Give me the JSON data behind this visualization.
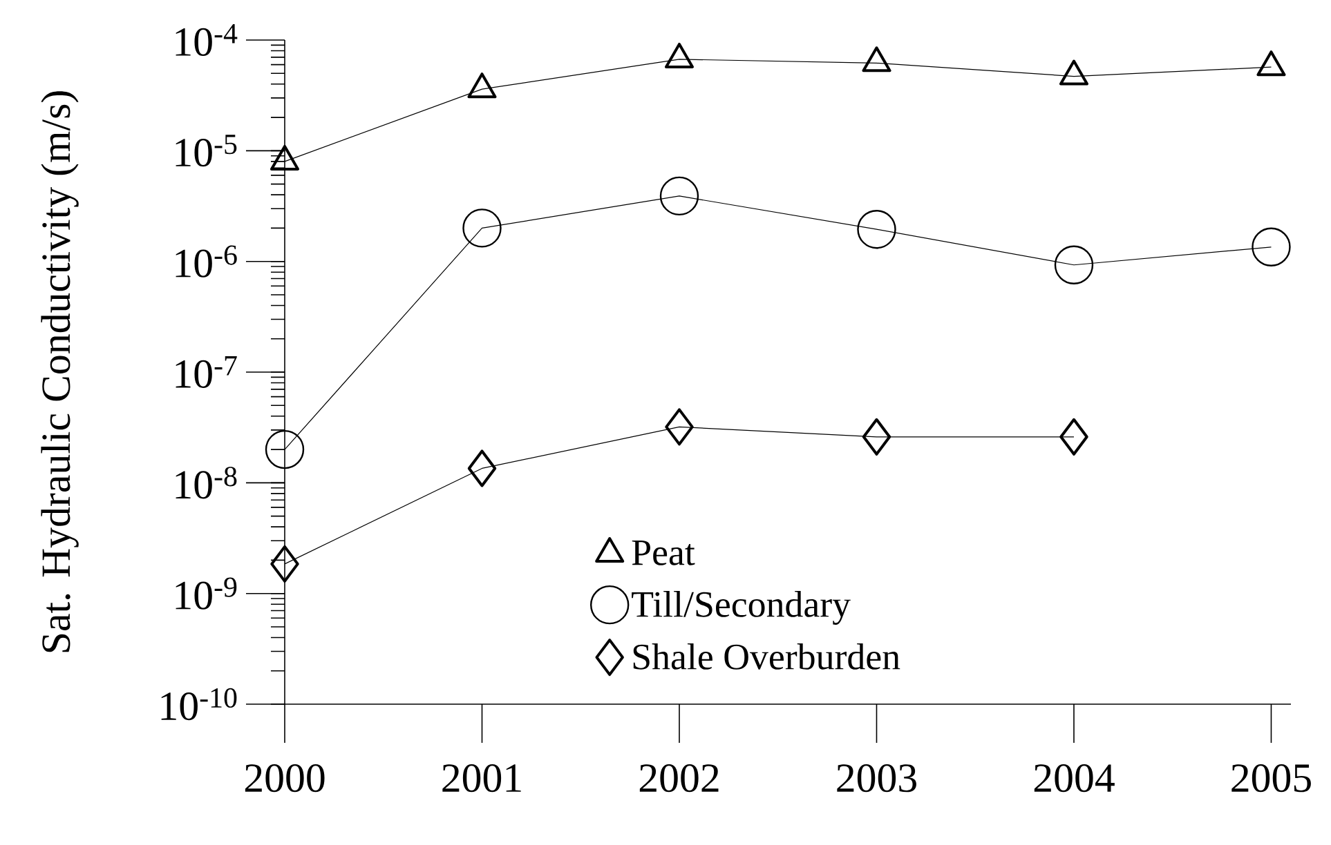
{
  "chart_data": {
    "type": "line",
    "ylabel": "Sat. Hydraulic Conductivity (m/s)",
    "categories": [
      "2000",
      "2001",
      "2002",
      "2003",
      "2004",
      "2005"
    ],
    "series": [
      {
        "name": "Peat",
        "color": "#000000",
        "marker": "triangle",
        "values": [
          8e-06,
          3.6e-05,
          6.7e-05,
          6.2e-05,
          4.7e-05,
          5.7e-05
        ]
      },
      {
        "name": "Till/Secondary",
        "color": "#000000",
        "marker": "circle",
        "values": [
          2e-08,
          2e-06,
          3.9e-06,
          1.95e-06,
          9.3e-07,
          1.35e-06
        ]
      },
      {
        "name": "Shale Overburden",
        "color": "#000000",
        "marker": "diamond",
        "values": [
          1.85e-09,
          1.35e-08,
          3.2e-08,
          2.6e-08,
          2.6e-08,
          null
        ]
      }
    ],
    "log": true,
    "ylim": [
      1e-10,
      0.0001
    ],
    "yticks": [
      {
        "value": 1e-10,
        "label": "10$^{-10}$"
      },
      {
        "value": 1e-09,
        "label": "10$^{-9}$"
      },
      {
        "value": 1e-08,
        "label": "10$^{-8}$"
      },
      {
        "value": 1e-07,
        "label": "10$^{-7}$"
      },
      {
        "value": 1e-06,
        "label": "10$^{-6}$"
      },
      {
        "value": 1e-05,
        "label": "10$^{-5}$"
      },
      {
        "value": 0.0001,
        "label": "10$^{-4}$"
      }
    ],
    "legend": "bottom",
    "grid": false,
    "line_style": "solid"
  }
}
